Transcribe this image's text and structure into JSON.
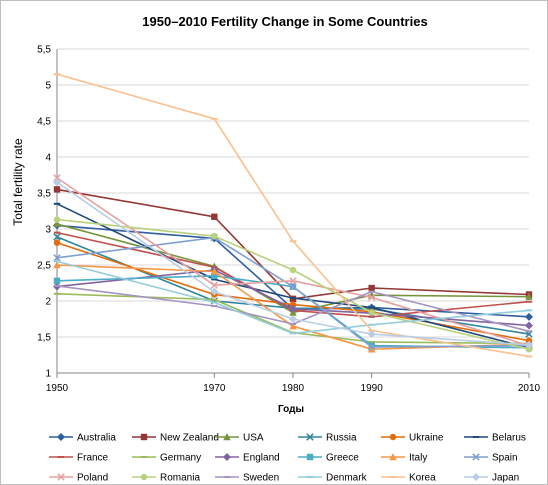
{
  "chart_data": {
    "type": "line",
    "title": "1950–2010 Fertility Change in Some Countries",
    "xlabel": "Годы",
    "ylabel": "Total fertility rate",
    "x": [
      1950,
      1970,
      1980,
      1990,
      2010
    ],
    "ylim": [
      1,
      5.5
    ],
    "yticks": [
      "1",
      "1,5",
      "2",
      "2,5",
      "3",
      "3,5",
      "4",
      "4,5",
      "5",
      "5,5"
    ],
    "ytick_values": [
      1,
      1.5,
      2,
      2.5,
      3,
      3.5,
      4,
      4.5,
      5,
      5.5
    ],
    "grid": true,
    "legend_position": "bottom",
    "series": [
      {
        "name": "Australia",
        "color": "#2e5f9e",
        "marker": "diamond",
        "values": [
          3.05,
          2.87,
          1.89,
          1.91,
          1.78
        ]
      },
      {
        "name": "New Zealand",
        "color": "#953735",
        "marker": "square",
        "values": [
          3.55,
          3.17,
          2.03,
          2.18,
          2.09
        ]
      },
      {
        "name": "USA",
        "color": "#77933c",
        "marker": "triangle",
        "values": [
          3.07,
          2.48,
          1.84,
          2.08,
          2.06
        ]
      },
      {
        "name": "Russia",
        "color": "#31859c",
        "marker": "x",
        "values": [
          2.89,
          2.0,
          1.9,
          1.89,
          1.54
        ]
      },
      {
        "name": "Ukraine",
        "color": "#e46c0a",
        "marker": "circle",
        "values": [
          2.81,
          2.09,
          1.95,
          1.85,
          1.45
        ]
      },
      {
        "name": "Belarus",
        "color": "#1f497d",
        "marker": "dash",
        "values": [
          3.35,
          2.3,
          2.04,
          1.91,
          1.35
        ]
      },
      {
        "name": "France",
        "color": "#c0504d",
        "marker": "dash",
        "values": [
          2.95,
          2.47,
          1.87,
          1.78,
          1.99
        ]
      },
      {
        "name": "Germany",
        "color": "#9bbb59",
        "marker": "dash",
        "values": [
          2.1,
          2.02,
          1.56,
          1.43,
          1.41
        ]
      },
      {
        "name": "England",
        "color": "#8064a2",
        "marker": "diamond",
        "values": [
          2.2,
          2.43,
          1.89,
          1.83,
          1.66
        ]
      },
      {
        "name": "Greece",
        "color": "#4bacc6",
        "marker": "square",
        "values": [
          2.28,
          2.35,
          2.2,
          1.38,
          1.35
        ]
      },
      {
        "name": "Italy",
        "color": "#f79646",
        "marker": "triangle",
        "values": [
          2.5,
          2.41,
          1.65,
          1.33,
          1.4
        ]
      },
      {
        "name": "Spain",
        "color": "#7f9fcf",
        "marker": "x",
        "values": [
          2.6,
          2.88,
          2.2,
          1.36,
          1.38
        ]
      },
      {
        "name": "Poland",
        "color": "#e6a0a0",
        "marker": "x",
        "values": [
          3.71,
          2.22,
          2.28,
          2.05,
          1.38
        ]
      },
      {
        "name": "Romania",
        "color": "#b7d17c",
        "marker": "circle",
        "values": [
          3.13,
          2.9,
          2.43,
          1.84,
          1.33
        ]
      },
      {
        "name": "Sweden",
        "color": "#a593c2",
        "marker": "dash",
        "values": [
          2.21,
          1.93,
          1.68,
          2.13,
          1.58
        ]
      },
      {
        "name": "Denmark",
        "color": "#93cddd",
        "marker": "dash",
        "values": [
          2.55,
          1.98,
          1.55,
          1.67,
          1.87
        ]
      },
      {
        "name": "Korea",
        "color": "#fac08f",
        "marker": "dash",
        "values": [
          5.15,
          4.53,
          2.83,
          1.59,
          1.23
        ]
      },
      {
        "name": "Japan",
        "color": "#b9cde5",
        "marker": "diamond",
        "values": [
          3.65,
          2.13,
          1.75,
          1.54,
          1.39
        ]
      }
    ]
  }
}
